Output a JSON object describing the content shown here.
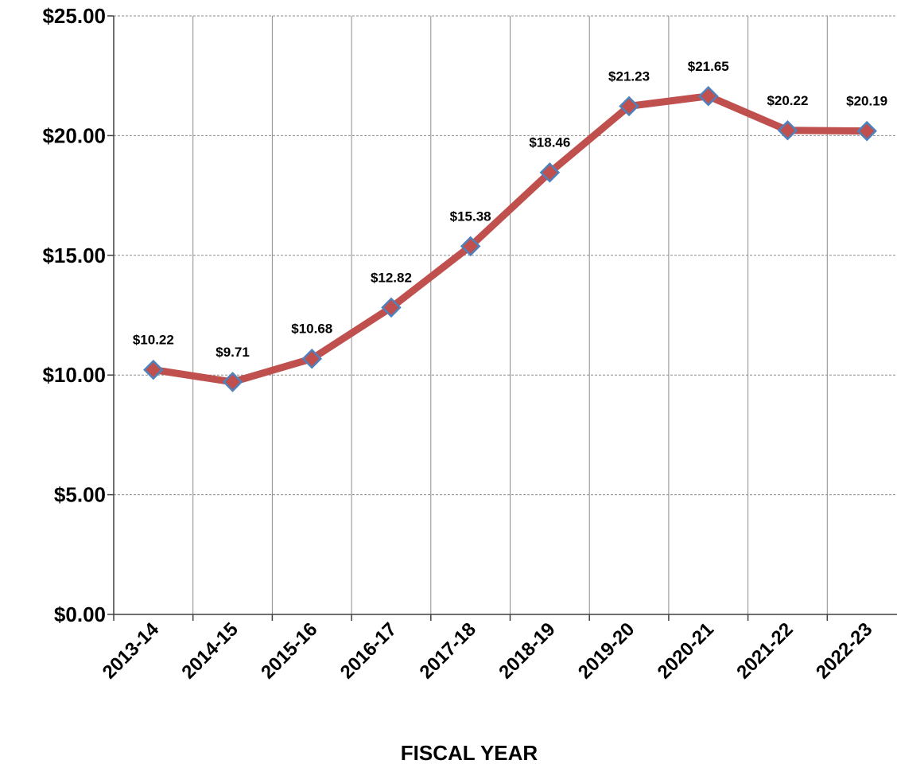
{
  "chart_data": {
    "type": "line",
    "title": "",
    "xlabel": "FISCAL YEAR",
    "ylabel": "",
    "categories": [
      "2013-14",
      "2014-15",
      "2015-16",
      "2016-17",
      "2017-18",
      "2018-19",
      "2019-20",
      "2020-21",
      "2021-22",
      "2022-23"
    ],
    "values": [
      10.22,
      9.71,
      10.68,
      12.82,
      15.38,
      18.46,
      21.23,
      21.65,
      20.22,
      20.19
    ],
    "data_labels": [
      "$10.22",
      "$9.71",
      "$10.68",
      "$12.82",
      "$15.38",
      "$18.46",
      "$21.23",
      "$21.65",
      "$20.22",
      "$20.19"
    ],
    "y_ticks": [
      0,
      5,
      10,
      15,
      20,
      25
    ],
    "y_tick_labels": [
      "$0.00",
      "$5.00",
      "$10.00",
      "$15.00",
      "$20.00",
      "$25.00"
    ],
    "ylim": [
      0,
      25
    ],
    "grid": true,
    "legend": "none",
    "colors": {
      "line": "#c0504d",
      "marker_fill": "#c0504d",
      "marker_stroke": "#4f81bd",
      "grid_horizontal": "#8c8c8c",
      "grid_vertical": "#8c8c8c",
      "axis": "#404040"
    }
  }
}
